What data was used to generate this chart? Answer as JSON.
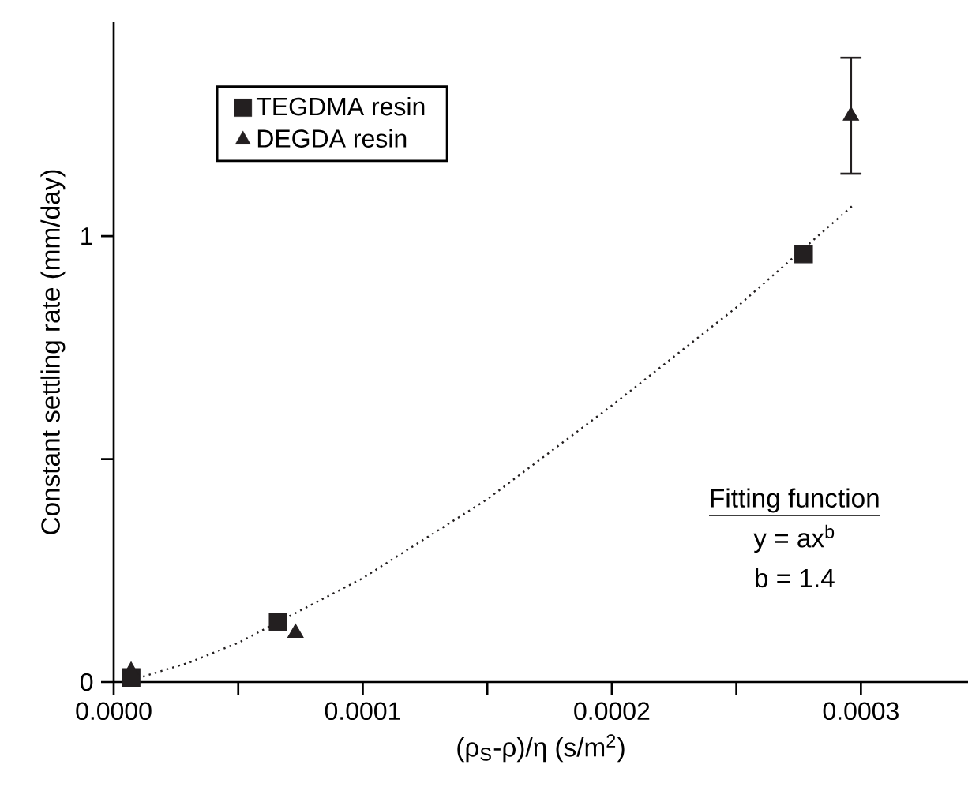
{
  "chart_data": {
    "type": "scatter",
    "xlabel": "(ρ$_{S}$-ρ)/η (s/m$^{2}$)",
    "ylabel": "Constant settling rate (mm/day)",
    "xlim": [
      0,
      0.000343
    ],
    "ylim": [
      0,
      1.48
    ],
    "xticks": [
      {
        "value": 0,
        "label": "0.0000"
      },
      {
        "value": 5e-05,
        "label": null
      },
      {
        "value": 0.0001,
        "label": "0.0001"
      },
      {
        "value": 0.00015,
        "label": null
      },
      {
        "value": 0.0002,
        "label": "0.0002"
      },
      {
        "value": 0.00025,
        "label": null
      },
      {
        "value": 0.0003,
        "label": "0.0003"
      }
    ],
    "yticks": [
      0,
      {
        "value": 0.5,
        "label": null
      },
      1
    ],
    "legend": "top left",
    "grid": false,
    "series": [
      {
        "name": "TEGDMA resin",
        "color": "#231f20",
        "marker": "square",
        "x": [
          7e-06,
          6.6e-05,
          0.000277
        ],
        "values": [
          0.01,
          0.135,
          0.96
        ]
      },
      {
        "name": "DEGDA resin",
        "color": "#231f20",
        "marker": "triangle",
        "x": [
          7e-06,
          7.3e-05,
          0.000296
        ],
        "values": [
          0.025,
          0.11,
          1.27
        ],
        "errors": [
          null,
          null,
          0.13
        ]
      },
      {
        "type": "line",
        "color": "#231f20",
        "marker": "none",
        "line_style": "dotted",
        "x": [
          7e-06,
          1e-05,
          3e-05,
          5e-05,
          0.0001,
          0.00015,
          0.0002,
          0.00025,
          0.000297
        ],
        "values": [
          0.006,
          0.0093,
          0.043,
          0.088,
          0.233,
          0.41,
          0.62,
          0.84,
          1.07
        ]
      }
    ],
    "annotations": [
      "Fitting function",
      "y = ax$^{b}$",
      "b = 1.4"
    ]
  }
}
